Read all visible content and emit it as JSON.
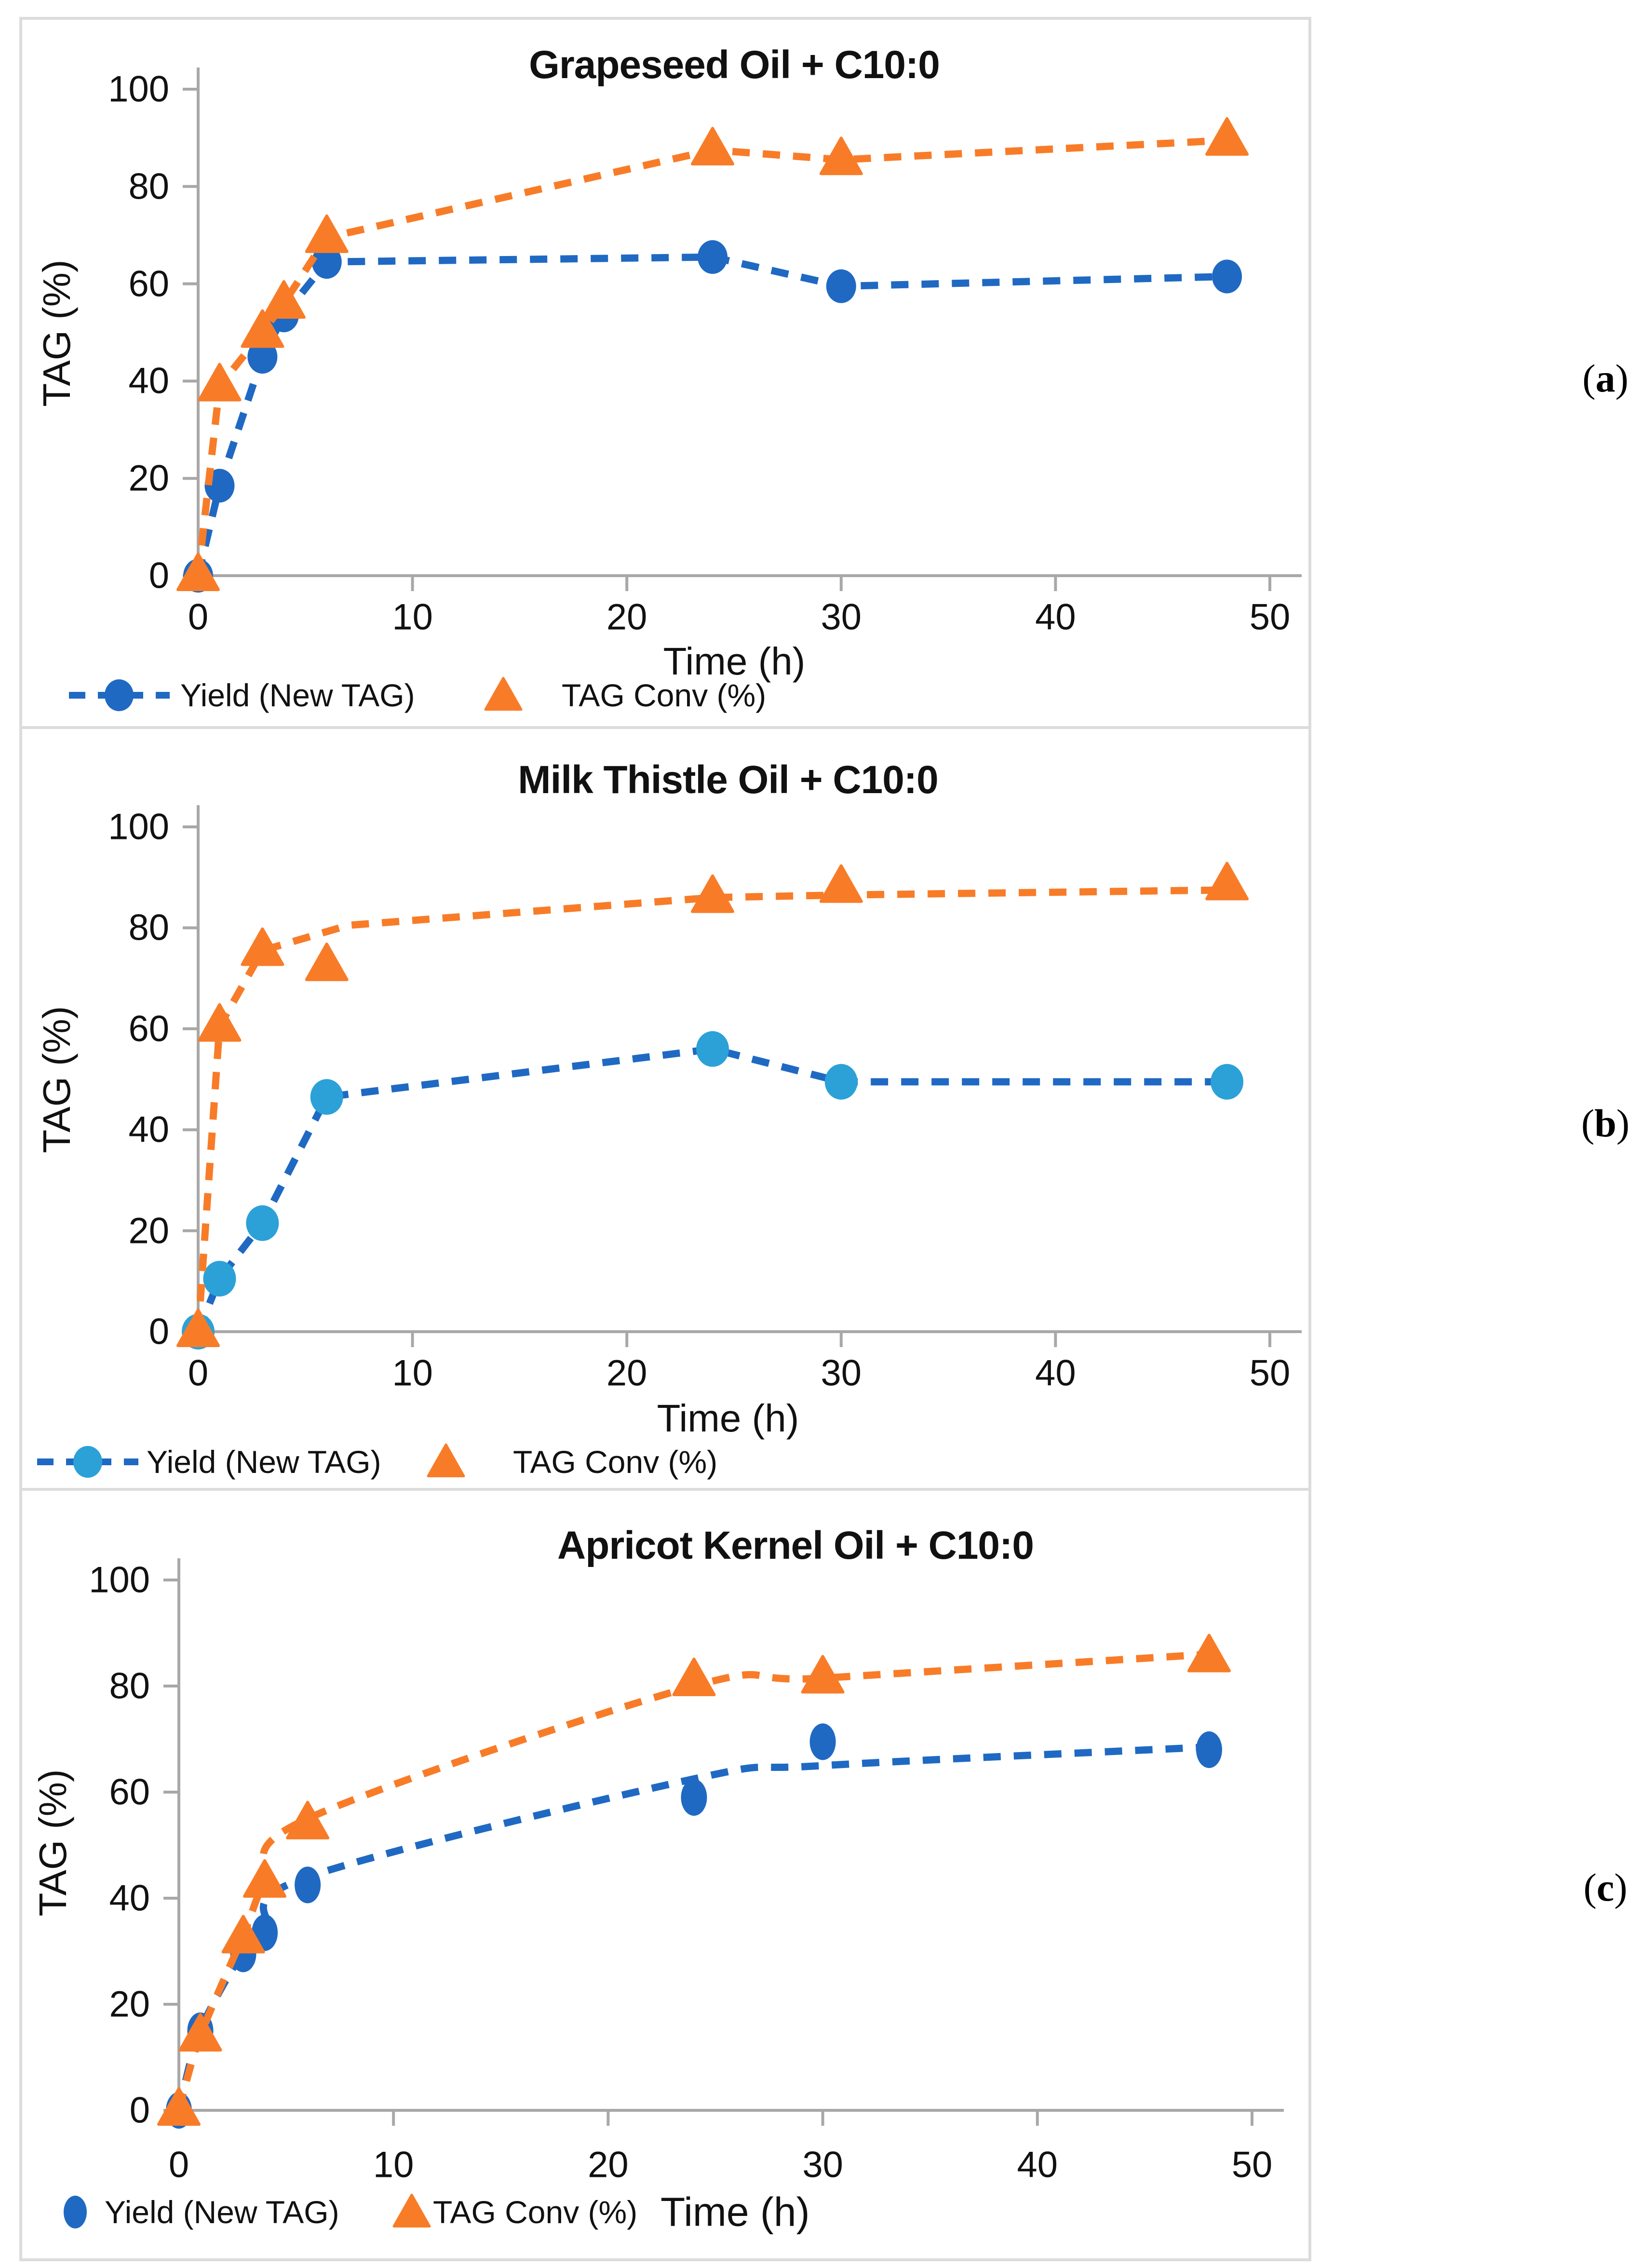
{
  "page": {
    "background": "#ffffff"
  },
  "style": {
    "axis_color": "#a8a8a8",
    "panel_border_color": "#dcdcdc",
    "text_color": "#111111",
    "blue": "#1f69c3",
    "light_blue": "#2ba1d8",
    "orange": "#f87c28"
  },
  "panel_labels": [
    {
      "open": "(",
      "letter": "a",
      "close": ")"
    },
    {
      "open": "(",
      "letter": "b",
      "close": ")"
    },
    {
      "open": "(",
      "letter": "c",
      "close": ")"
    }
  ],
  "chart_data": [
    {
      "type": "line",
      "title": "Grapeseed Oil + C10:0",
      "xlabel": "Time (h)",
      "ylabel": "TAG (%)",
      "xticks": [
        0,
        10,
        20,
        30,
        40,
        50
      ],
      "yticks": [
        0,
        20,
        40,
        60,
        80,
        100
      ],
      "xlim": [
        0,
        52
      ],
      "ylim": [
        0,
        100
      ],
      "grid": false,
      "legend_position": "bottom-left",
      "smooth": false,
      "series": [
        {
          "name": "Yield (New TAG)",
          "marker": "circle",
          "line_style": "dashed",
          "line_color": "#1f69c3",
          "marker_color": "#1f69c3",
          "x": [
            0,
            1,
            3,
            4,
            6,
            24,
            30,
            48
          ],
          "y": [
            0,
            18.5,
            45,
            53.5,
            64.5,
            65.5,
            59.5,
            61.5
          ]
        },
        {
          "name": "TAG Conv (%)",
          "marker": "triangle",
          "line_style": "dashed",
          "line_color": "#f87c28",
          "marker_color": "#f87c28",
          "x": [
            0,
            1,
            3,
            4,
            6,
            24,
            30,
            48
          ],
          "y": [
            0,
            39,
            50,
            56,
            69.5,
            87.5,
            85.5,
            89.5
          ]
        }
      ]
    },
    {
      "type": "line",
      "title": "Milk Thistle Oil + C10:0",
      "xlabel": "Time (h)",
      "ylabel": "TAG (%)",
      "xticks": [
        0,
        10,
        20,
        30,
        40,
        50
      ],
      "yticks": [
        0,
        20,
        40,
        60,
        80,
        100
      ],
      "xlim": [
        0,
        52
      ],
      "ylim": [
        0,
        100
      ],
      "grid": false,
      "legend_position": "bottom-left",
      "smooth": false,
      "series": [
        {
          "name": "Yield (New TAG)",
          "marker": "circle",
          "line_style": "dashed",
          "line_color": "#1f69c3",
          "marker_color": "#2ba1d8",
          "x": [
            0,
            1,
            3,
            6,
            24,
            30,
            48
          ],
          "y": [
            0,
            10.5,
            21.5,
            46.5,
            56,
            49.5,
            49.5
          ]
        },
        {
          "name": "TAG Conv (%)",
          "marker": "triangle",
          "line_style": "dashed",
          "line_color": "#f87c28",
          "marker_color": "#f87c28",
          "x": [
            0,
            1,
            3,
            6,
            24,
            30,
            48
          ],
          "y": [
            0,
            60.5,
            75.5,
            72.5,
            86,
            88,
            88.5
          ],
          "trend": {
            "x": [
              0,
              1,
              3,
              7,
              24,
              30,
              48
            ],
            "y": [
              0,
              60.5,
              75.5,
              80.5,
              86,
              86.5,
              87.5
            ]
          }
        }
      ]
    },
    {
      "type": "line",
      "title": "Apricot Kernel Oil + C10:0",
      "xlabel": "Time (h)",
      "ylabel": "TAG (%)",
      "xticks": [
        0,
        10,
        20,
        30,
        40,
        50
      ],
      "yticks": [
        0,
        20,
        40,
        60,
        80,
        100
      ],
      "xlim": [
        0,
        52
      ],
      "ylim": [
        0,
        100
      ],
      "grid": false,
      "legend_position": "bottom-left",
      "smooth": true,
      "series": [
        {
          "name": "Yield (New TAG)",
          "marker": "ellipse",
          "line_style": "dashed",
          "line_color": "#1f69c3",
          "marker_color": "#1f69c3",
          "x": [
            0,
            1,
            3,
            4,
            6,
            24,
            30,
            48
          ],
          "y": [
            0,
            15,
            29.5,
            33.5,
            42.5,
            59,
            69.5,
            68
          ],
          "trend": {
            "x": [
              0,
              1,
              3,
              4,
              6,
              24,
              30,
              48
            ],
            "y": [
              0,
              15,
              30,
              34.5,
              44,
              62.5,
              65,
              68.5
            ]
          }
        },
        {
          "name": "TAG Conv (%)",
          "marker": "triangle",
          "line_style": "dashed",
          "line_color": "#f87c28",
          "marker_color": "#f87c28",
          "x": [
            0,
            1,
            3,
            4,
            6,
            24,
            30,
            48
          ],
          "y": [
            0,
            14,
            32.5,
            43,
            54,
            81,
            81.5,
            85.5
          ],
          "trend": {
            "x": [
              0,
              1,
              3,
              4,
              6,
              24,
              30,
              48
            ],
            "y": [
              0,
              14,
              33,
              43,
              55,
              80,
              81.5,
              86
            ]
          }
        }
      ]
    }
  ]
}
